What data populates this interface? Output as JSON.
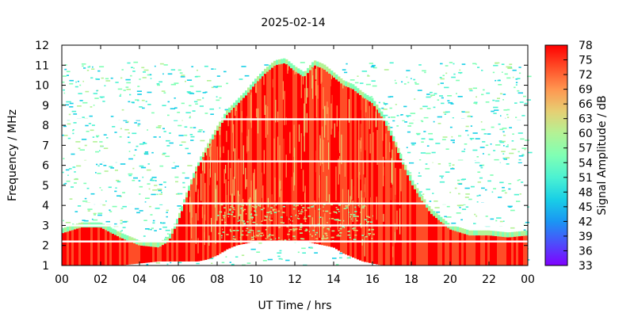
{
  "chart_data": {
    "type": "heatmap",
    "title": "2025-02-14",
    "xlabel": "UT Time / hrs",
    "ylabel": "Frequency / MHz",
    "colorbar_label": "Signal Amplitude / dB",
    "xlim": [
      0,
      24
    ],
    "ylim": [
      1,
      12
    ],
    "x_ticks": [
      "00",
      "02",
      "04",
      "06",
      "08",
      "10",
      "12",
      "14",
      "16",
      "18",
      "20",
      "22",
      "00"
    ],
    "y_ticks": [
      "1",
      "2",
      "3",
      "4",
      "5",
      "6",
      "7",
      "8",
      "9",
      "10",
      "11",
      "12"
    ],
    "colorbar_range": [
      33,
      78
    ],
    "colorbar_ticks": [
      "78",
      "75",
      "72",
      "69",
      "66",
      "63",
      "60",
      "57",
      "54",
      "51",
      "48",
      "45",
      "42",
      "39",
      "36",
      "33"
    ],
    "colormap": [
      "#8000ff",
      "#4d4dfb",
      "#1a96f3",
      "#19cfe6",
      "#4cf2d2",
      "#80ffb4",
      "#b3f295",
      "#e6cf73",
      "#ff9650",
      "#ff4d27",
      "#ff0000"
    ],
    "grid": false,
    "saturated_region_envelope_mhz": {
      "hours": [
        0,
        1,
        2,
        3,
        4,
        5,
        5.5,
        6,
        6.5,
        7,
        7.5,
        8,
        8.5,
        9,
        9.5,
        10,
        10.5,
        11,
        11.5,
        12,
        12.5,
        13,
        13.5,
        14,
        14.5,
        15,
        15.5,
        16,
        16.5,
        17,
        17.5,
        18,
        18.5,
        19,
        20,
        21,
        22,
        23,
        24
      ],
      "top": [
        2.6,
        2.9,
        2.9,
        2.4,
        2.0,
        1.9,
        2.2,
        3.2,
        4.6,
        5.9,
        6.8,
        7.7,
        8.5,
        9.0,
        9.5,
        10.1,
        10.6,
        11.0,
        11.1,
        10.7,
        10.4,
        11.0,
        10.8,
        10.4,
        10.0,
        9.8,
        9.4,
        9.1,
        8.4,
        7.4,
        6.2,
        5.1,
        4.3,
        3.6,
        2.8,
        2.5,
        2.5,
        2.4,
        2.5
      ],
      "bottom": [
        1,
        1,
        1,
        1,
        1.1,
        1.2,
        1.2,
        1.2,
        1.2,
        1.2,
        1.3,
        1.5,
        1.8,
        2.0,
        2.1,
        2.2,
        2.2,
        2.2,
        2.2,
        2.2,
        2.2,
        2.1,
        2.0,
        1.9,
        1.6,
        1.4,
        1.2,
        1.1,
        1,
        1,
        1,
        1,
        1,
        1,
        1,
        1,
        1,
        1,
        1
      ]
    },
    "gap_frequencies_mhz": [
      2.2,
      3.0,
      4.1,
      6.2,
      8.3
    ]
  }
}
